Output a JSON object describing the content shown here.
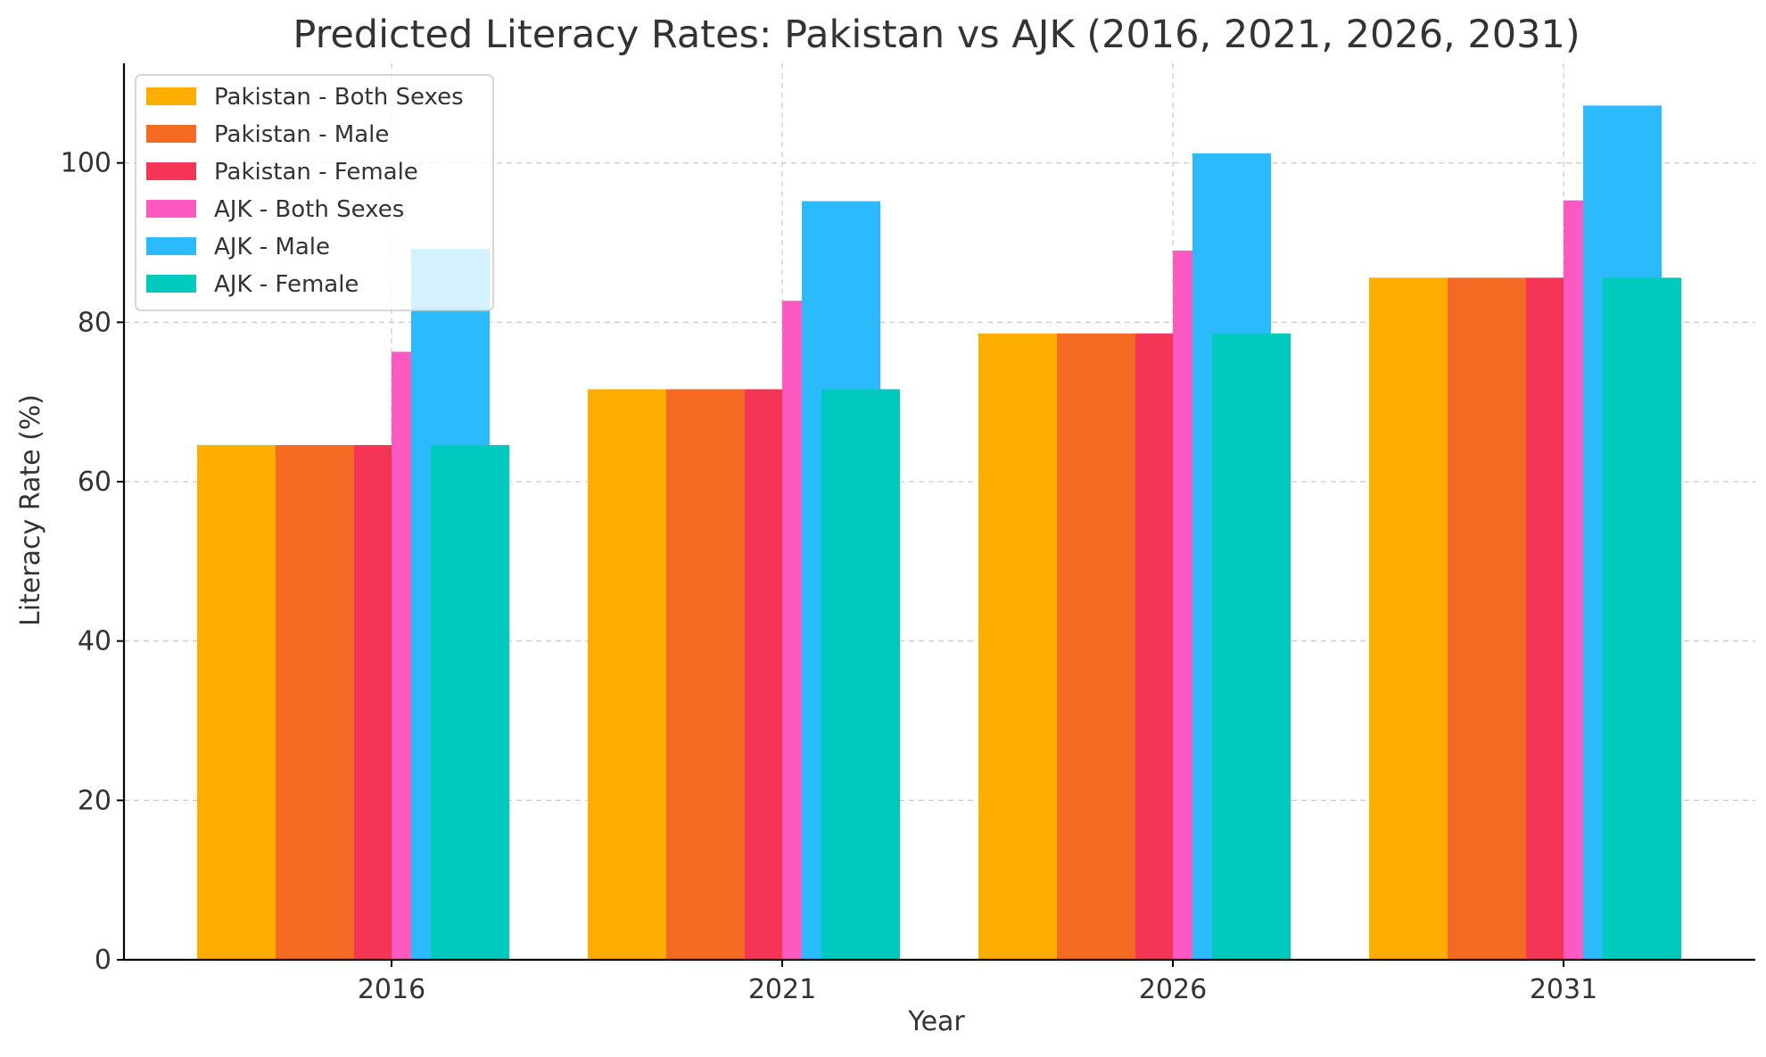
{
  "chart_data": {
    "type": "bar",
    "title": "Predicted Literacy Rates: Pakistan vs AJK (2016, 2021, 2026, 2031)",
    "xlabel": "Year",
    "ylabel": "Literacy Rate (%)",
    "categories": [
      "2016",
      "2021",
      "2026",
      "2031"
    ],
    "ylim": [
      0,
      112.5
    ],
    "yticks": [
      0,
      20,
      40,
      60,
      80,
      100
    ],
    "grid": true,
    "legend_position": "top-left",
    "series": [
      {
        "name": "Pakistan - Both Sexes",
        "color": "#FFAE00",
        "values": [
          64.6,
          71.6,
          78.6,
          85.6
        ]
      },
      {
        "name": "Pakistan - Male",
        "color": "#F46A23",
        "values": [
          64.6,
          71.6,
          78.6,
          85.6
        ]
      },
      {
        "name": "Pakistan - Female",
        "color": "#F53556",
        "values": [
          64.6,
          71.6,
          78.6,
          85.6
        ]
      },
      {
        "name": "AJK - Both Sexes",
        "color": "#FC5AC0",
        "values": [
          76.3,
          82.7,
          89.0,
          95.3
        ]
      },
      {
        "name": "AJK - Male",
        "color": "#2BBBFD",
        "values": [
          89.2,
          95.2,
          101.2,
          107.2
        ]
      },
      {
        "name": "AJK - Female",
        "color": "#00C9BD",
        "values": [
          64.6,
          71.6,
          78.6,
          85.6
        ]
      }
    ]
  }
}
